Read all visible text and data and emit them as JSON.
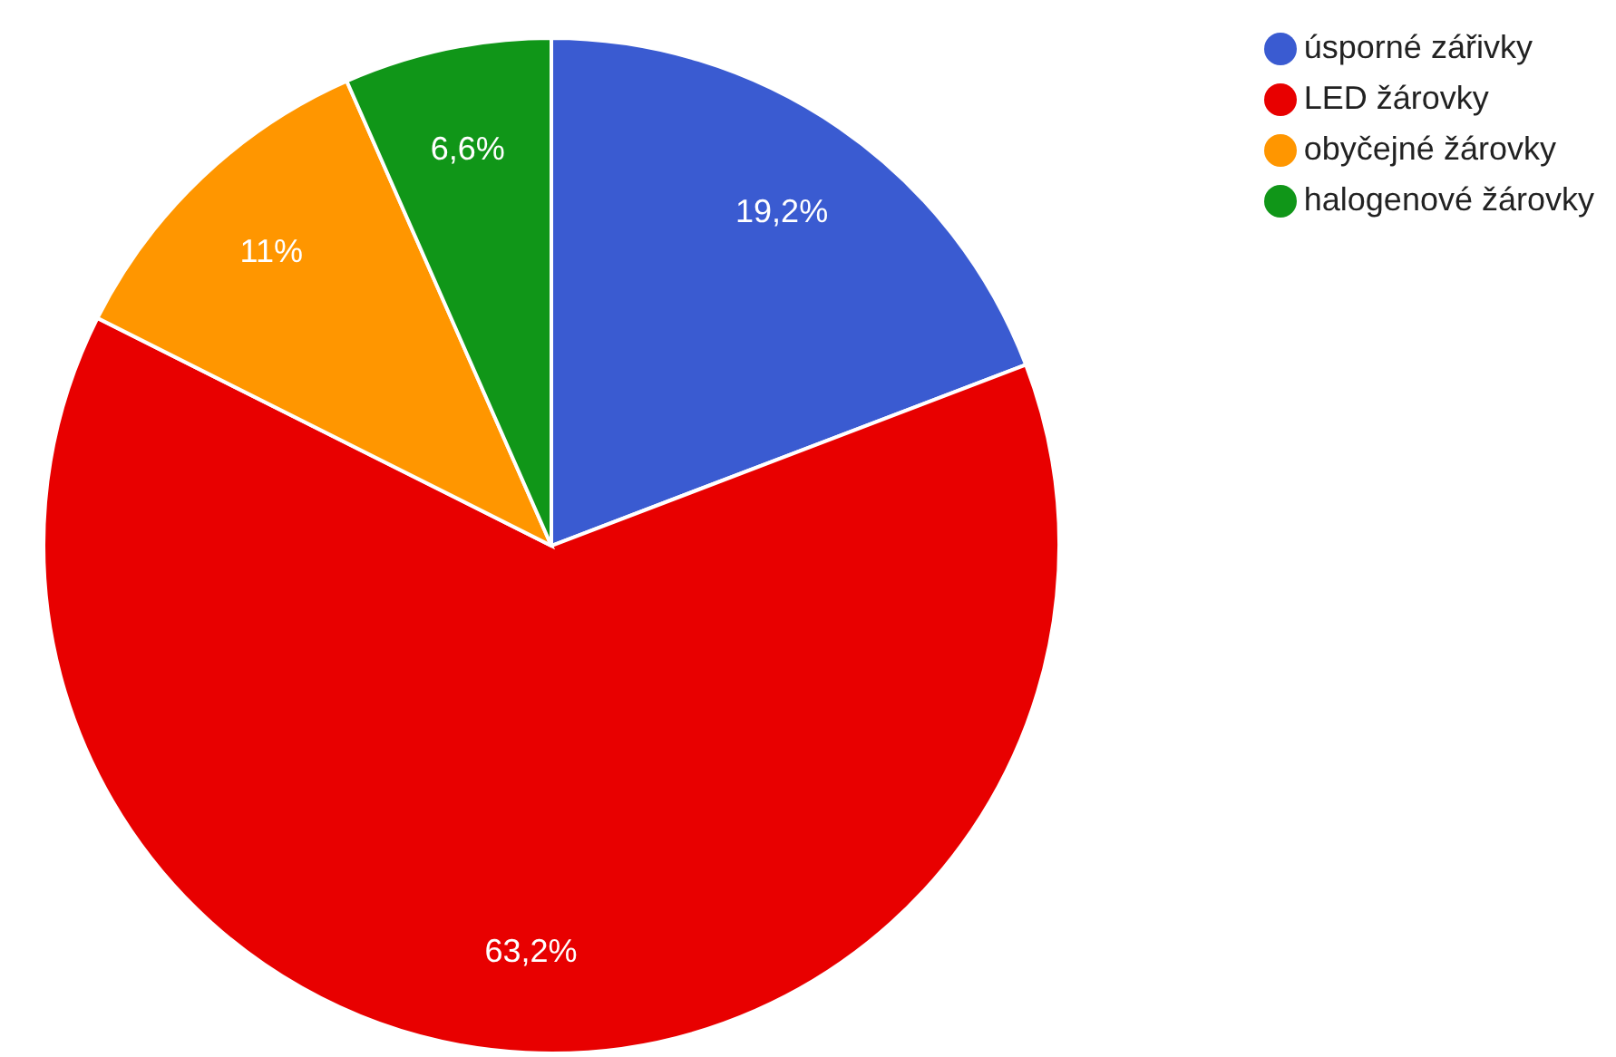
{
  "chart_data": {
    "type": "pie",
    "categories": [
      "úsporné zářivky",
      "LED žárovky",
      "obyčejné žárovky",
      "halogenové žárovky"
    ],
    "values": [
      19.2,
      63.2,
      11,
      6.6
    ],
    "colors": [
      "#3a5bd1",
      "#e80000",
      "#ff9600",
      "#109618"
    ],
    "value_labels": [
      "19,2%",
      "63,2%",
      "11%",
      "6,6%"
    ],
    "legend": "top right"
  }
}
